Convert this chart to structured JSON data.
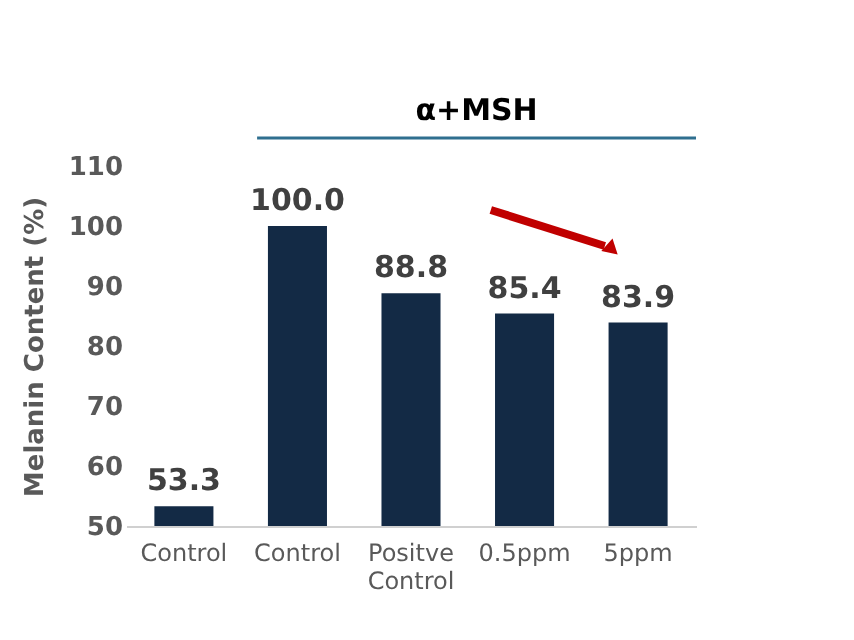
{
  "chart_data": {
    "type": "bar",
    "ylabel": "Melanin Content (%)",
    "categories": [
      "Control",
      "Control",
      "Positve Control",
      "0.5ppm",
      "5ppm"
    ],
    "values": [
      53.3,
      100.0,
      88.8,
      85.4,
      83.9
    ],
    "value_labels": [
      "53.3",
      "100.0",
      "88.8",
      "85.4",
      "83.9"
    ],
    "color": "#132a45",
    "ylim": [
      50,
      110
    ],
    "yticks": [
      50,
      60,
      70,
      80,
      90,
      100,
      110
    ],
    "annotations": [
      "α+MSH"
    ],
    "grid": false
  }
}
